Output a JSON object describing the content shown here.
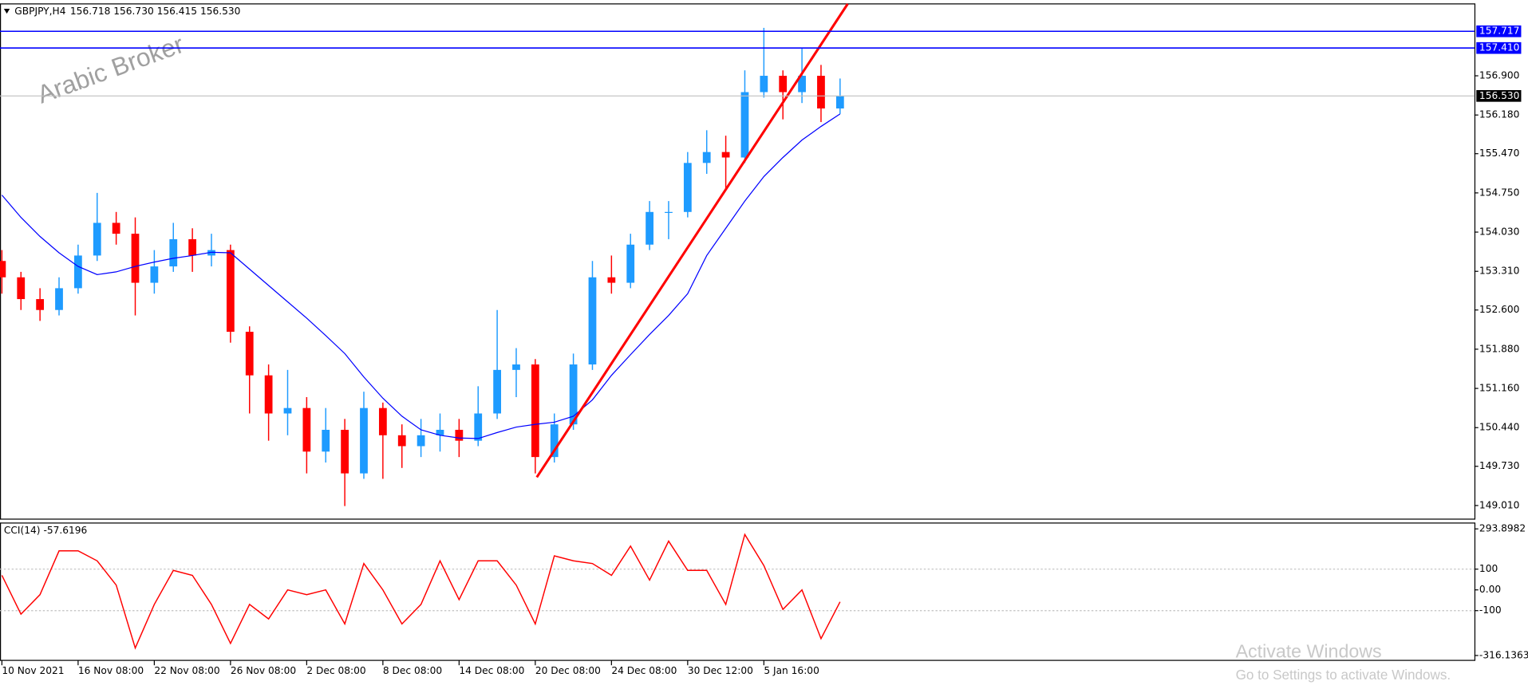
{
  "header": {
    "symbol": "GBPJPY,H4",
    "quote": "156.718 156.730 156.415 156.530"
  },
  "watermark": "Arabic Broker",
  "activation": {
    "title": "Activate Windows",
    "text": "Go to Settings to activate Windows."
  },
  "chart_data": [
    {
      "type": "candlestick",
      "up_color": "#1e9bff",
      "down_color": "#ff0000",
      "open": [
        153.5,
        153.2,
        152.8,
        152.6,
        153.0,
        153.6,
        154.2,
        154.0,
        153.1,
        153.4,
        153.9,
        153.6,
        153.7,
        152.2,
        151.4,
        150.7,
        150.8,
        150.0,
        150.4,
        149.6,
        150.8,
        150.3,
        150.1,
        150.3,
        150.4,
        150.2,
        150.7,
        151.5,
        151.6,
        149.9,
        150.5,
        151.6,
        153.2,
        153.1,
        153.8,
        154.4,
        154.4,
        155.3,
        155.5,
        155.4,
        156.6,
        156.9,
        156.6,
        156.9,
        156.3
      ],
      "high": [
        153.7,
        153.3,
        153.0,
        153.2,
        153.8,
        154.75,
        154.4,
        154.3,
        153.7,
        154.2,
        154.1,
        154.0,
        153.8,
        152.3,
        151.6,
        151.5,
        151.0,
        150.8,
        150.6,
        151.1,
        150.9,
        150.5,
        150.6,
        150.7,
        150.6,
        151.2,
        152.6,
        151.9,
        151.7,
        150.7,
        151.8,
        153.5,
        153.6,
        154.0,
        154.6,
        154.6,
        155.5,
        155.9,
        155.8,
        157.0,
        157.78,
        157.0,
        157.4,
        157.1,
        156.85
      ],
      "low": [
        152.9,
        152.6,
        152.4,
        152.5,
        152.9,
        153.5,
        153.8,
        152.5,
        152.9,
        153.3,
        153.3,
        153.4,
        152.0,
        150.7,
        150.2,
        150.3,
        149.6,
        149.8,
        149.0,
        149.5,
        149.5,
        149.7,
        149.9,
        150.0,
        149.9,
        150.1,
        150.6,
        151.0,
        149.6,
        149.8,
        150.4,
        151.5,
        152.9,
        153.0,
        153.7,
        153.9,
        154.3,
        155.1,
        154.8,
        155.3,
        156.5,
        156.1,
        156.4,
        156.05,
        156.2
      ],
      "close": [
        153.2,
        152.8,
        152.6,
        153.0,
        153.6,
        154.2,
        154.0,
        153.1,
        153.4,
        153.9,
        153.6,
        153.7,
        152.2,
        151.4,
        150.7,
        150.8,
        150.0,
        150.4,
        149.6,
        150.8,
        150.3,
        150.1,
        150.3,
        150.4,
        150.2,
        150.7,
        151.5,
        151.6,
        149.9,
        150.5,
        151.6,
        153.2,
        153.1,
        153.8,
        154.4,
        154.4,
        155.3,
        155.5,
        155.4,
        156.6,
        156.9,
        156.6,
        156.9,
        156.3,
        156.53
      ],
      "ma": {
        "color": "#0000ff",
        "values": [
          154.71,
          154.3,
          153.95,
          153.65,
          153.4,
          153.25,
          153.3,
          153.4,
          153.48,
          153.55,
          153.6,
          153.66,
          153.65,
          153.35,
          153.05,
          152.75,
          152.45,
          152.13,
          151.8,
          151.37,
          150.98,
          150.65,
          150.4,
          150.3,
          150.25,
          150.24,
          150.35,
          150.45,
          150.5,
          150.54,
          150.65,
          150.95,
          151.4,
          151.78,
          152.15,
          152.5,
          152.9,
          153.6,
          154.1,
          154.6,
          155.05,
          155.4,
          155.72,
          155.97,
          156.2
        ]
      },
      "trendline": {
        "color": "#ff0000",
        "x": [
          28.08,
          44.4
        ],
        "y": [
          149.53,
          158.22
        ]
      },
      "hlines": [
        {
          "value": 157.717,
          "label": "157.717",
          "color": "#0000ff"
        },
        {
          "value": 157.41,
          "label": "157.410",
          "color": "#0000ff"
        }
      ],
      "last_price": {
        "value": 156.53,
        "label": "156.530"
      },
      "xlim": [
        -0.1,
        77.3
      ],
      "ylim": [
        148.76,
        158.22
      ],
      "yticks": [
        {
          "value": 156.9,
          "label": "156.900"
        },
        {
          "value": 156.18,
          "label": "156.180"
        },
        {
          "value": 155.47,
          "label": "155.470"
        },
        {
          "value": 154.75,
          "label": "154.750"
        },
        {
          "value": 154.03,
          "label": "154.030"
        },
        {
          "value": 153.31,
          "label": "153.310"
        },
        {
          "value": 152.6,
          "label": "152.600"
        },
        {
          "value": 151.88,
          "label": "151.880"
        },
        {
          "value": 151.16,
          "label": "151.160"
        },
        {
          "value": 150.44,
          "label": "150.440"
        },
        {
          "value": 149.73,
          "label": "149.730"
        },
        {
          "value": 149.01,
          "label": "149.010"
        }
      ],
      "xticks": [
        {
          "value": 0,
          "label": "10 Nov 2021"
        },
        {
          "value": 4,
          "label": "16 Nov 08:00"
        },
        {
          "value": 8,
          "label": "22 Nov 08:00"
        },
        {
          "value": 12,
          "label": "26 Nov 08:00"
        },
        {
          "value": 16,
          "label": "2 Dec 08:00"
        },
        {
          "value": 20,
          "label": "8 Dec 08:00"
        },
        {
          "value": 24,
          "label": "14 Dec 08:00"
        },
        {
          "value": 28,
          "label": "20 Dec 08:00"
        },
        {
          "value": 32,
          "label": "24 Dec 08:00"
        },
        {
          "value": 36,
          "label": "30 Dec 12:00"
        },
        {
          "value": 40,
          "label": "5 Jan 16:00"
        }
      ]
    },
    {
      "type": "line",
      "title": "CCI(14) -57.6196",
      "color": "#ff0000",
      "values": [
        70,
        -117,
        -23,
        188,
        188,
        140,
        23,
        -280,
        -70,
        94,
        70,
        -70,
        -258,
        -70,
        -140,
        0,
        -23,
        0,
        -164,
        127,
        0,
        -164,
        -70,
        140,
        -47,
        140,
        140,
        23,
        -164,
        164,
        140,
        127,
        70,
        211,
        47,
        235,
        94,
        94,
        -70,
        267,
        117,
        -94,
        0,
        -235,
        -57.6196
      ],
      "xlim": [
        -0.1,
        77.3
      ],
      "ylim": [
        -339.6,
        322.1
      ],
      "yticks": [
        293.8982,
        100,
        {
          "value": 0,
          "label": "0.00"
        },
        -100,
        -316.1363
      ],
      "levels": [
        100,
        -100
      ]
    }
  ]
}
